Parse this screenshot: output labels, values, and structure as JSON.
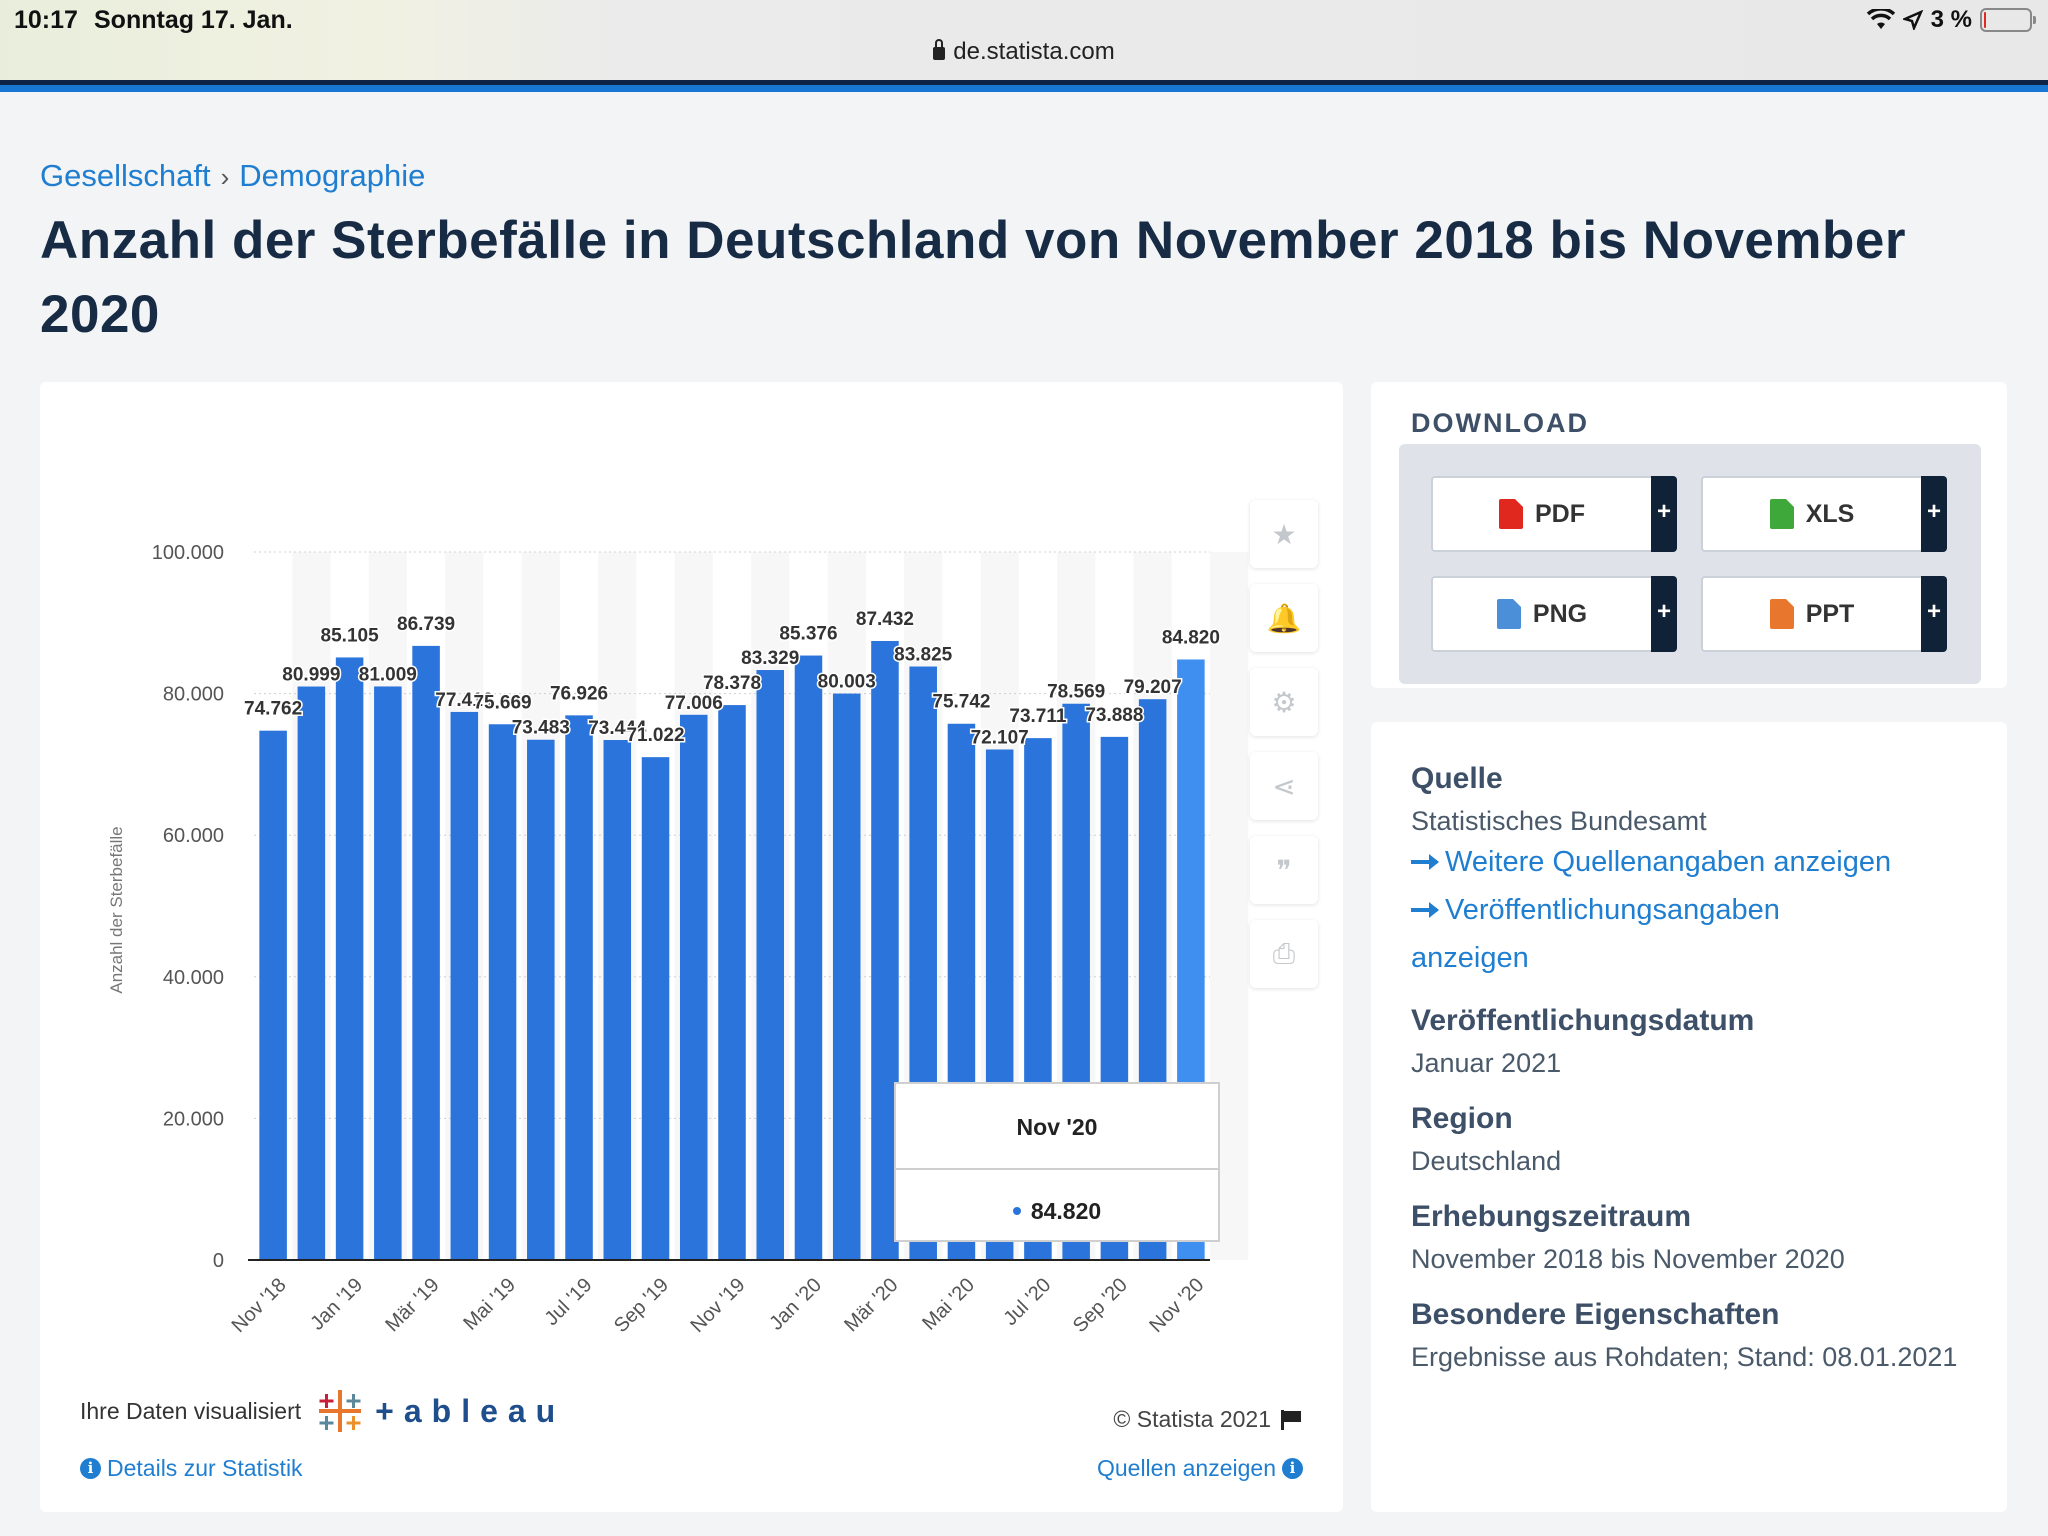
{
  "status_bar": {
    "time": "10:17",
    "date": "Sonntag 17. Jan.",
    "battery": "3 %",
    "battery_level": 0.03
  },
  "browser": {
    "url": "de.statista.com"
  },
  "breadcrumb": {
    "items": [
      "Gesellschaft",
      "Demographie"
    ]
  },
  "page_title": "Anzahl der Sterbefälle in Deutschland von November 2018 bis November 2020",
  "chart_data": {
    "type": "bar",
    "categories": [
      "Nov '18",
      "Dez '18",
      "Jan '19",
      "Feb '19",
      "Mär '19",
      "Apr '19",
      "Mai '19",
      "Jun '19",
      "Jul '19",
      "Aug '19",
      "Sep '19",
      "Okt '19",
      "Nov '19",
      "Dez '19",
      "Jan '20",
      "Feb '20",
      "Mär '20",
      "Apr '20",
      "Mai '20",
      "Jun '20",
      "Jul '20",
      "Aug '20",
      "Sep '20",
      "Okt '20",
      "Nov '20"
    ],
    "tick_labels": [
      "Nov '18",
      "Jan '19",
      "Mär '19",
      "Mai '19",
      "Jul '19",
      "Sep '19",
      "Nov '19",
      "Jan '20",
      "Mär '20",
      "Mai '20",
      "Jul '20",
      "Sep '20",
      "Nov '20"
    ],
    "values": [
      74762,
      80999,
      85105,
      81009,
      86739,
      77410,
      75669,
      73483,
      76926,
      73444,
      71022,
      77006,
      78378,
      83329,
      85376,
      80003,
      87432,
      83825,
      75742,
      72107,
      73711,
      78569,
      73888,
      79207,
      84820
    ],
    "value_labels": [
      "74.762",
      "80.999",
      "85.105",
      "81.009",
      "86.739",
      "77.410",
      "75.669",
      "73.483",
      "76.926",
      "73.444",
      "71.022",
      "77.006",
      "78.378",
      "83.329",
      "85.376",
      "80.003",
      "87.432",
      "83.825",
      "75.742",
      "72.107",
      "73.711",
      "78.569",
      "73.888",
      "79.207",
      "84.820"
    ],
    "ylabel": "Anzahl der Sterbefälle",
    "yticks": [
      "0",
      "20.000",
      "40.000",
      "60.000",
      "80.000",
      "100.000"
    ],
    "ylim": [
      0,
      100000
    ],
    "highlighted_index": 24,
    "bar_color": "#2a74dc",
    "highlight_color": "#3f8ff0"
  },
  "tooltip": {
    "title": "Nov '20",
    "value": "84.820"
  },
  "side_tools": [
    {
      "name": "favorite-icon",
      "glyph": "★"
    },
    {
      "name": "bell-icon",
      "glyph": "🔔"
    },
    {
      "name": "gear-icon",
      "glyph": "⚙"
    },
    {
      "name": "share-icon",
      "glyph": "⋖"
    },
    {
      "name": "quote-icon",
      "glyph": "❞"
    },
    {
      "name": "print-icon",
      "glyph": "⎙"
    }
  ],
  "chart_footer": {
    "visualized_by": "Ihre Daten visualisiert",
    "tableau": "+ableau",
    "copyright": "© Statista 2021",
    "details_link": "Details zur Statistik",
    "sources_link": "Quellen anzeigen"
  },
  "download": {
    "title": "DOWNLOAD",
    "buttons": [
      {
        "label": "PDF",
        "color": "#e0281e"
      },
      {
        "label": "XLS",
        "color": "#3ea83b"
      },
      {
        "label": "PNG",
        "color": "#4a8fd8"
      },
      {
        "label": "PPT",
        "color": "#e8762c"
      }
    ],
    "plus": "+"
  },
  "info": {
    "source_label": "Quelle",
    "source_value": "Statistisches Bundesamt",
    "more_sources_link": "Weitere Quellenangaben anzeigen",
    "publication_link_line1": "Veröffentlichungsangaben",
    "publication_link_line2": "anzeigen",
    "pub_date_label": "Veröffentlichungsdatum",
    "pub_date_value": "Januar 2021",
    "region_label": "Region",
    "region_value": "Deutschland",
    "period_label": "Erhebungszeitraum",
    "period_value": "November 2018 bis November 2020",
    "special_label": "Besondere Eigenschaften",
    "special_value": "Ergebnisse aus Rohdaten; Stand: 08.01.2021"
  }
}
